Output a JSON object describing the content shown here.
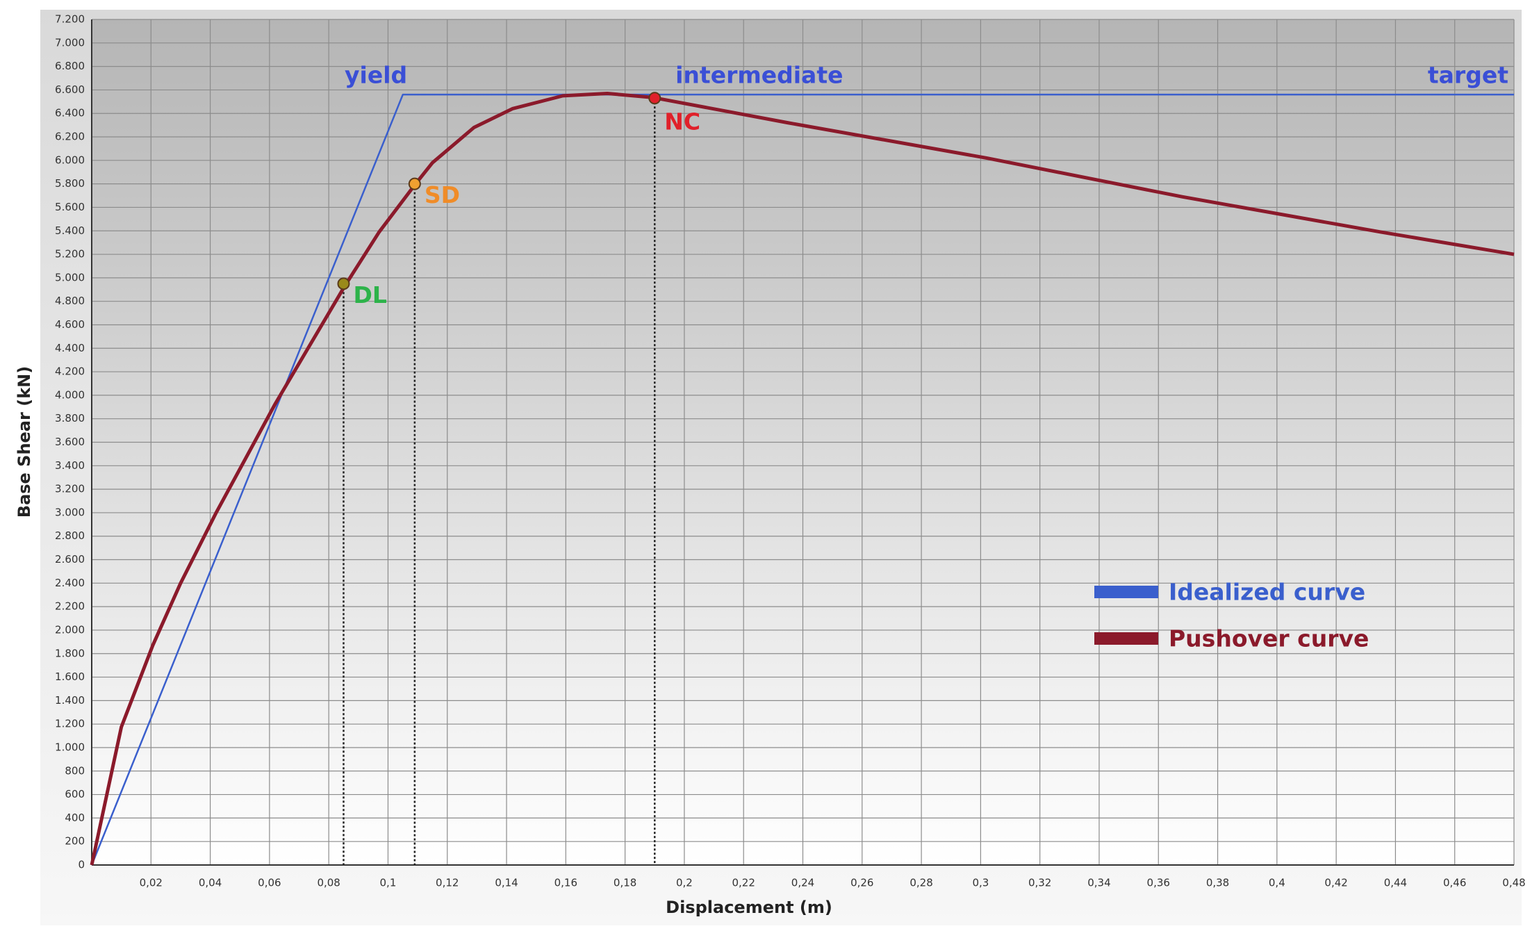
{
  "chart_data": {
    "type": "line",
    "x_label": "Displacement (m)",
    "y_label": "Base Shear (kN)",
    "xlim": [
      0,
      0.48
    ],
    "ylim": [
      0,
      7200
    ],
    "grid": true,
    "legend": "lower right",
    "xticks": [
      {
        "value": 0.02,
        "label": "0,02"
      },
      {
        "value": 0.04,
        "label": "0,04"
      },
      {
        "value": 0.06,
        "label": "0,06"
      },
      {
        "value": 0.08,
        "label": "0,08"
      },
      {
        "value": 0.1,
        "label": "0,1"
      },
      {
        "value": 0.12,
        "label": "0,12"
      },
      {
        "value": 0.14,
        "label": "0,14"
      },
      {
        "value": 0.16,
        "label": "0,16"
      },
      {
        "value": 0.18,
        "label": "0,18"
      },
      {
        "value": 0.2,
        "label": "0,2"
      },
      {
        "value": 0.22,
        "label": "0,22"
      },
      {
        "value": 0.24,
        "label": "0,24"
      },
      {
        "value": 0.26,
        "label": "0,26"
      },
      {
        "value": 0.28,
        "label": "0,28"
      },
      {
        "value": 0.3,
        "label": "0,3"
      },
      {
        "value": 0.32,
        "label": "0,32"
      },
      {
        "value": 0.34,
        "label": "0,34"
      },
      {
        "value": 0.36,
        "label": "0,36"
      },
      {
        "value": 0.38,
        "label": "0,38"
      },
      {
        "value": 0.4,
        "label": "0,4"
      },
      {
        "value": 0.42,
        "label": "0,42"
      },
      {
        "value": 0.44,
        "label": "0,44"
      },
      {
        "value": 0.46,
        "label": "0,46"
      },
      {
        "value": 0.48,
        "label": "0,48"
      }
    ],
    "yticks": [
      0,
      200,
      400,
      600,
      800,
      {
        "value": 1000,
        "label": "1.000"
      },
      {
        "value": 1200,
        "label": "1.200"
      },
      {
        "value": 1400,
        "label": "1.400"
      },
      {
        "value": 1600,
        "label": "1.600"
      },
      {
        "value": 1800,
        "label": "1.800"
      },
      {
        "value": 2000,
        "label": "2.000"
      },
      {
        "value": 2200,
        "label": "2.200"
      },
      {
        "value": 2400,
        "label": "2.400"
      },
      {
        "value": 2600,
        "label": "2.600"
      },
      {
        "value": 2800,
        "label": "2.800"
      },
      {
        "value": 3000,
        "label": "3.000"
      },
      {
        "value": 3200,
        "label": "3.200"
      },
      {
        "value": 3400,
        "label": "3.400"
      },
      {
        "value": 3600,
        "label": "3.600"
      },
      {
        "value": 3800,
        "label": "3.800"
      },
      {
        "value": 4000,
        "label": "4.000"
      },
      {
        "value": 4200,
        "label": "4.200"
      },
      {
        "value": 4400,
        "label": "4.400"
      },
      {
        "value": 4600,
        "label": "4.600"
      },
      {
        "value": 4800,
        "label": "4.800"
      },
      {
        "value": 5000,
        "label": "5.000"
      },
      {
        "value": 5200,
        "label": "5.200"
      },
      {
        "value": 5400,
        "label": "5.400"
      },
      {
        "value": 5600,
        "label": "5.600"
      },
      {
        "value": 5800,
        "label": "5.800"
      },
      {
        "value": 6000,
        "label": "6.000"
      },
      {
        "value": 6200,
        "label": "6.200"
      },
      {
        "value": 6400,
        "label": "6.400"
      },
      {
        "value": 6600,
        "label": "6.600"
      },
      {
        "value": 6800,
        "label": "6.800"
      },
      {
        "value": 7000,
        "label": "7.000"
      },
      {
        "value": 7200,
        "label": "7.200"
      }
    ],
    "series": [
      {
        "name": "Idealized curve",
        "color": "#3a5fcd",
        "x": [
          0,
          0.105,
          0.48
        ],
        "values": [
          0,
          6560,
          6560
        ]
      },
      {
        "name": "Pushover curve",
        "color": "#8b1a2b",
        "x": [
          0,
          0.01,
          0.0206,
          0.03,
          0.042,
          0.062,
          0.0854,
          0.097,
          0.1093,
          0.115,
          0.129,
          0.142,
          0.159,
          0.174,
          0.1895,
          0.235,
          0.302,
          0.368,
          0.435,
          0.48
        ],
        "values": [
          0,
          1175,
          1870,
          2400,
          3000,
          3930,
          4930,
          5390,
          5800,
          5980,
          6280,
          6440,
          6550,
          6570,
          6535,
          6320,
          6020,
          5690,
          5390,
          5200
        ]
      }
    ],
    "markers": [
      {
        "name": "DL",
        "x": 0.085,
        "y": 4950,
        "color": "#9a8a1a",
        "label_color": "#2db34a"
      },
      {
        "name": "SD",
        "x": 0.109,
        "y": 5800,
        "color": "#f0a030",
        "label_color": "#f08c28"
      },
      {
        "name": "NC",
        "x": 0.19,
        "y": 6530,
        "color": "#e0202a",
        "label_color": "#e0202a"
      }
    ],
    "annotations": [
      "yield",
      "intermediate",
      "target"
    ],
    "annotation_color": "#3a4fd6"
  }
}
